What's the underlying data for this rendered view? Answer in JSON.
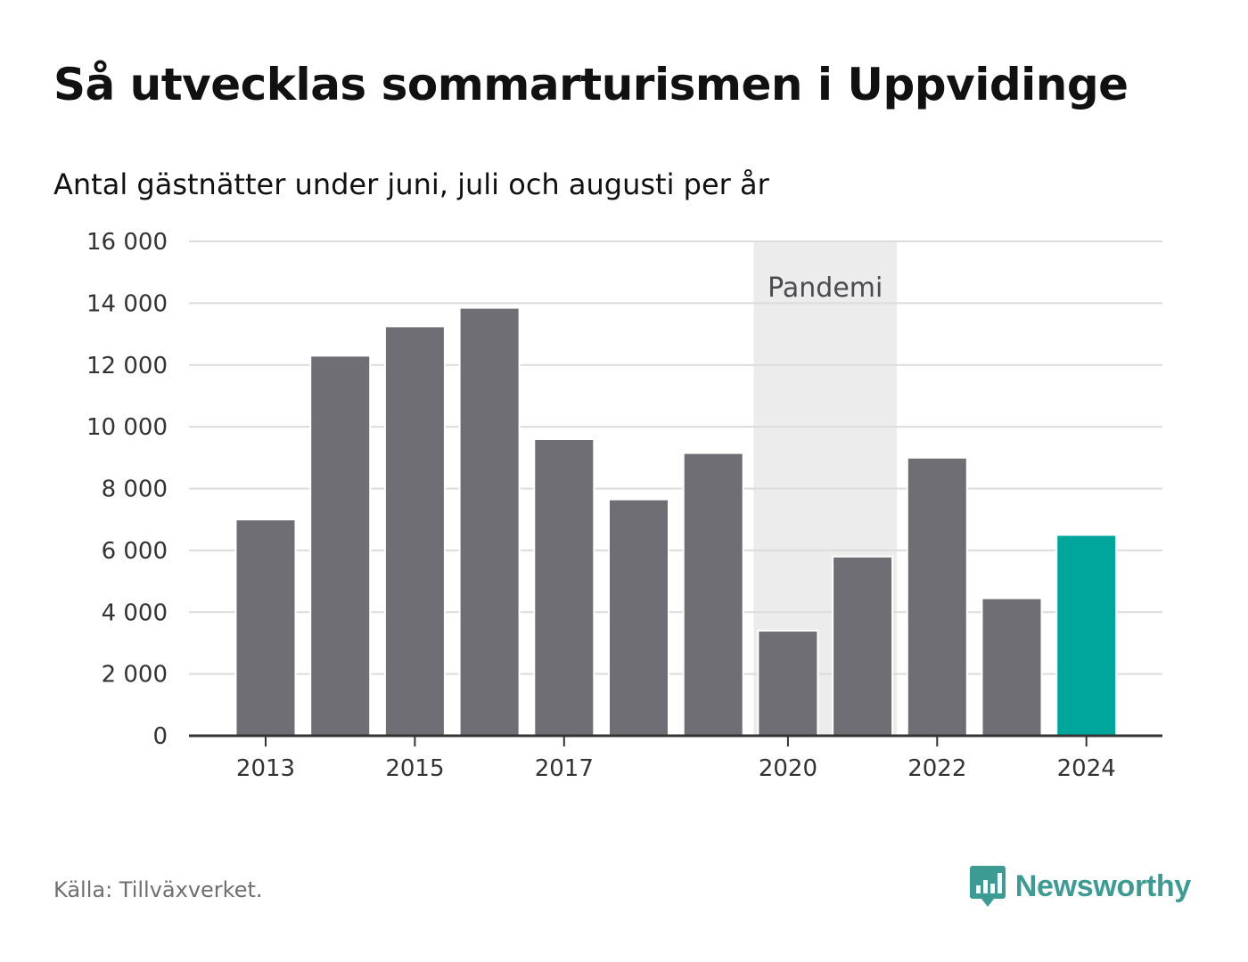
{
  "title": "Så utvecklas sommarturismen i Uppvidinge",
  "subtitle": "Antal gästnätter under juni, juli och augusti per år",
  "source": "Källa: Tillväxverket.",
  "brand": {
    "name": "Newsworthy",
    "logo_icon": "bar-chart-logo-icon"
  },
  "colors": {
    "bar": "#6f6e75",
    "highlight": "#00a69c",
    "band": "#ececec",
    "grid": "#dcdcdc",
    "axis": "#333333"
  },
  "chart_data": {
    "type": "bar",
    "categories": [
      "2013",
      "2014",
      "2015",
      "2016",
      "2017",
      "2018",
      "2019",
      "2020",
      "2021",
      "2022",
      "2023",
      "2024"
    ],
    "values": [
      7000,
      12300,
      13250,
      13850,
      9600,
      7650,
      9150,
      3400,
      5800,
      9000,
      4450,
      6500
    ],
    "highlight_index": 11,
    "ylim": [
      0,
      16000
    ],
    "yticks": [
      0,
      2000,
      4000,
      6000,
      8000,
      10000,
      12000,
      14000,
      16000
    ],
    "ytick_labels": [
      "0",
      "2 000",
      "4 000",
      "6 000",
      "8 000",
      "10 000",
      "12 000",
      "14 000",
      "16 000"
    ],
    "xtick_labels": [
      "2013",
      "2015",
      "2017",
      "2020",
      "2022",
      "2024"
    ],
    "grid": true,
    "annotation": {
      "label": "Pandemi",
      "from": "2020",
      "to": "2021"
    }
  }
}
